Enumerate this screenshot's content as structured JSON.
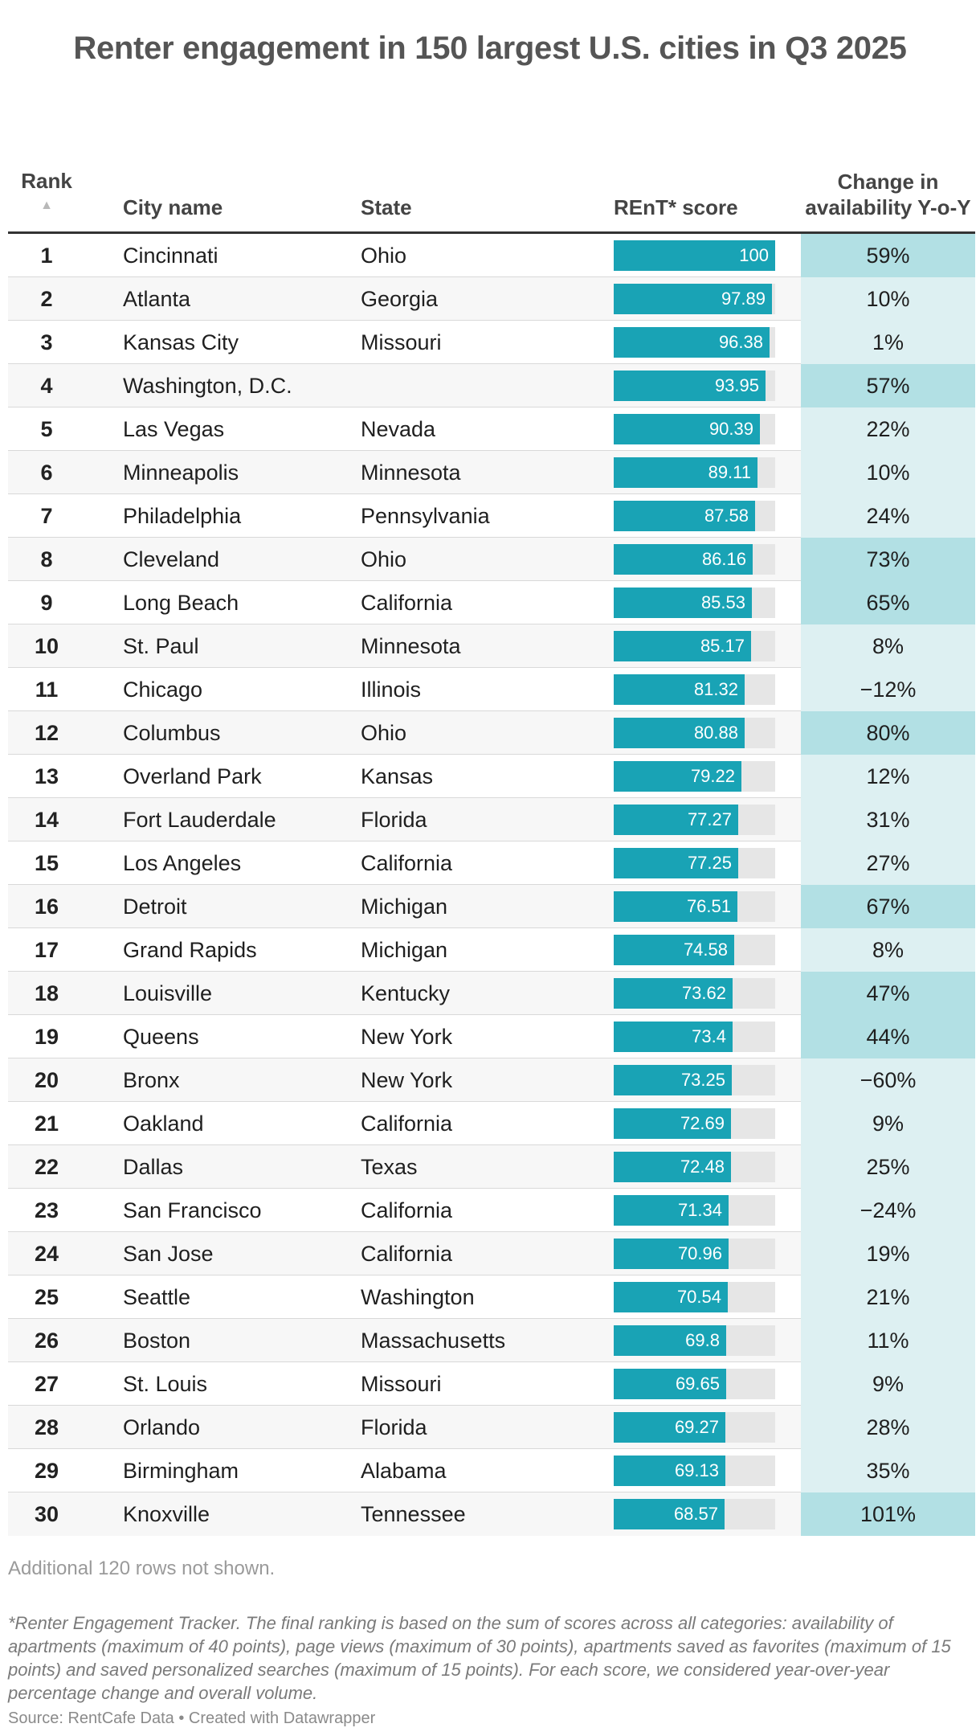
{
  "title": "Renter engagement in 150 largest U.S. cities in Q3 2025",
  "columns": {
    "rank": "Rank",
    "city": "City name",
    "state": "State",
    "score": "REnT* score",
    "change": "Change in availability Y-o-Y"
  },
  "sort_icon": "▲",
  "colors": {
    "bar": "#19a3b5",
    "bar_track": "#e6e6e6",
    "change_high": "#b2e0e4",
    "change_mid": "#ddf0f2"
  },
  "chart_data": {
    "type": "table",
    "title": "Renter engagement in 150 largest U.S. cities in Q3 2025",
    "score_range": [
      0,
      100
    ],
    "rows": [
      {
        "rank": "1",
        "city": "Cincinnati",
        "state": "Ohio",
        "score": 100,
        "score_label": "100",
        "change": "59%",
        "change_value": 59
      },
      {
        "rank": "2",
        "city": "Atlanta",
        "state": "Georgia",
        "score": 97.89,
        "score_label": "97.89",
        "change": "10%",
        "change_value": 10
      },
      {
        "rank": "3",
        "city": "Kansas City",
        "state": "Missouri",
        "score": 96.38,
        "score_label": "96.38",
        "change": "1%",
        "change_value": 1
      },
      {
        "rank": "4",
        "city": "Washington, D.C.",
        "state": "",
        "score": 93.95,
        "score_label": "93.95",
        "change": "57%",
        "change_value": 57
      },
      {
        "rank": "5",
        "city": "Las Vegas",
        "state": "Nevada",
        "score": 90.39,
        "score_label": "90.39",
        "change": "22%",
        "change_value": 22
      },
      {
        "rank": "6",
        "city": "Minneapolis",
        "state": "Minnesota",
        "score": 89.11,
        "score_label": "89.11",
        "change": "10%",
        "change_value": 10
      },
      {
        "rank": "7",
        "city": "Philadelphia",
        "state": "Pennsylvania",
        "score": 87.58,
        "score_label": "87.58",
        "change": "24%",
        "change_value": 24
      },
      {
        "rank": "8",
        "city": "Cleveland",
        "state": "Ohio",
        "score": 86.16,
        "score_label": "86.16",
        "change": "73%",
        "change_value": 73
      },
      {
        "rank": "9",
        "city": "Long Beach",
        "state": "California",
        "score": 85.53,
        "score_label": "85.53",
        "change": "65%",
        "change_value": 65
      },
      {
        "rank": "10",
        "city": "St. Paul",
        "state": "Minnesota",
        "score": 85.17,
        "score_label": "85.17",
        "change": "8%",
        "change_value": 8
      },
      {
        "rank": "11",
        "city": "Chicago",
        "state": "Illinois",
        "score": 81.32,
        "score_label": "81.32",
        "change": "−12%",
        "change_value": -12
      },
      {
        "rank": "12",
        "city": "Columbus",
        "state": "Ohio",
        "score": 80.88,
        "score_label": "80.88",
        "change": "80%",
        "change_value": 80
      },
      {
        "rank": "13",
        "city": "Overland Park",
        "state": "Kansas",
        "score": 79.22,
        "score_label": "79.22",
        "change": "12%",
        "change_value": 12
      },
      {
        "rank": "14",
        "city": "Fort Lauderdale",
        "state": "Florida",
        "score": 77.27,
        "score_label": "77.27",
        "change": "31%",
        "change_value": 31
      },
      {
        "rank": "15",
        "city": "Los Angeles",
        "state": "California",
        "score": 77.25,
        "score_label": "77.25",
        "change": "27%",
        "change_value": 27
      },
      {
        "rank": "16",
        "city": "Detroit",
        "state": "Michigan",
        "score": 76.51,
        "score_label": "76.51",
        "change": "67%",
        "change_value": 67
      },
      {
        "rank": "17",
        "city": "Grand Rapids",
        "state": "Michigan",
        "score": 74.58,
        "score_label": "74.58",
        "change": "8%",
        "change_value": 8
      },
      {
        "rank": "18",
        "city": "Louisville",
        "state": "Kentucky",
        "score": 73.62,
        "score_label": "73.62",
        "change": "47%",
        "change_value": 47
      },
      {
        "rank": "19",
        "city": "Queens",
        "state": "New York",
        "score": 73.4,
        "score_label": "73.4",
        "change": "44%",
        "change_value": 44
      },
      {
        "rank": "20",
        "city": "Bronx",
        "state": "New York",
        "score": 73.25,
        "score_label": "73.25",
        "change": "−60%",
        "change_value": -60
      },
      {
        "rank": "21",
        "city": "Oakland",
        "state": "California",
        "score": 72.69,
        "score_label": "72.69",
        "change": "9%",
        "change_value": 9
      },
      {
        "rank": "22",
        "city": "Dallas",
        "state": "Texas",
        "score": 72.48,
        "score_label": "72.48",
        "change": "25%",
        "change_value": 25
      },
      {
        "rank": "23",
        "city": "San Francisco",
        "state": "California",
        "score": 71.34,
        "score_label": "71.34",
        "change": "−24%",
        "change_value": -24
      },
      {
        "rank": "24",
        "city": "San Jose",
        "state": "California",
        "score": 70.96,
        "score_label": "70.96",
        "change": "19%",
        "change_value": 19
      },
      {
        "rank": "25",
        "city": "Seattle",
        "state": "Washington",
        "score": 70.54,
        "score_label": "70.54",
        "change": "21%",
        "change_value": 21
      },
      {
        "rank": "26",
        "city": "Boston",
        "state": "Massachusetts",
        "score": 69.8,
        "score_label": "69.8",
        "change": "11%",
        "change_value": 11
      },
      {
        "rank": "27",
        "city": "St. Louis",
        "state": "Missouri",
        "score": 69.65,
        "score_label": "69.65",
        "change": "9%",
        "change_value": 9
      },
      {
        "rank": "28",
        "city": "Orlando",
        "state": "Florida",
        "score": 69.27,
        "score_label": "69.27",
        "change": "28%",
        "change_value": 28
      },
      {
        "rank": "29",
        "city": "Birmingham",
        "state": "Alabama",
        "score": 69.13,
        "score_label": "69.13",
        "change": "35%",
        "change_value": 35
      },
      {
        "rank": "30",
        "city": "Knoxville",
        "state": "Tennessee",
        "score": 68.57,
        "score_label": "68.57",
        "change": "101%",
        "change_value": 101
      }
    ]
  },
  "notes": {
    "rows_hidden": "Additional 120 rows not shown.",
    "footnote": "*Renter Engagement Tracker. The final ranking is based on the sum of scores across all categories: availability of apartments (maximum of 40 points), page views (maximum of 30 points), apartments saved as favorites (maximum of 15 points) and saved personalized searches (maximum of 15 points). For each score, we considered year-over-year percentage change and overall volume.",
    "source": "Source: RentCafe Data • Created with Datawrapper"
  }
}
